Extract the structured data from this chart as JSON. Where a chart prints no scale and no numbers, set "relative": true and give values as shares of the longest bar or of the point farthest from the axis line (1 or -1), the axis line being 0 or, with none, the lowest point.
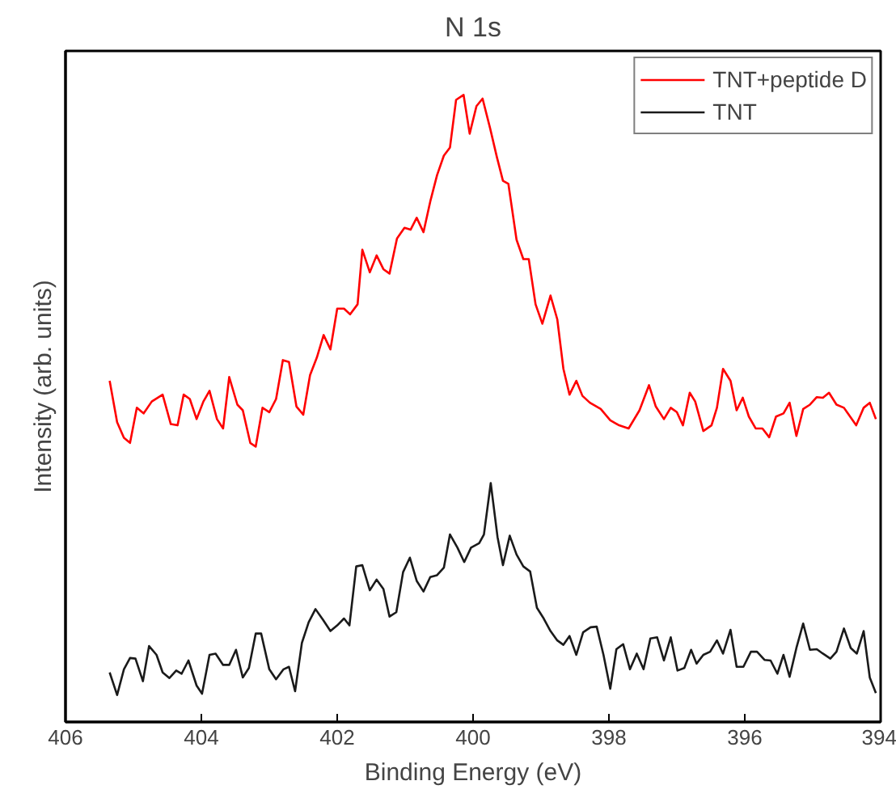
{
  "chart_data": {
    "type": "line",
    "title": "N 1s",
    "xlabel": "Binding Energy (eV)",
    "ylabel": "Intensity (arb. units)",
    "relative": true,
    "xlim": [
      406,
      394
    ],
    "xticks": [
      406,
      404,
      402,
      400,
      398,
      396,
      394
    ],
    "legend": "top right",
    "grid": false,
    "line_style": "solid",
    "series": [
      {
        "name": "TNT+peptide D",
        "color": "#ff0000",
        "x": [
          405.35,
          405.24,
          405.14,
          405.05,
          404.95,
          404.85,
          404.73,
          404.57,
          404.45,
          404.35,
          404.26,
          404.17,
          404.07,
          403.97,
          403.88,
          403.77,
          403.68,
          403.59,
          403.47,
          403.39,
          403.28,
          403.2,
          403.1,
          403.0,
          402.9,
          402.8,
          402.71,
          402.6,
          402.5,
          402.4,
          402.3,
          402.2,
          402.1,
          402.0,
          401.9,
          401.81,
          401.7,
          401.63,
          401.52,
          401.42,
          401.32,
          401.23,
          401.12,
          401.01,
          400.92,
          400.83,
          400.73,
          400.63,
          400.53,
          400.43,
          400.34,
          400.25,
          400.14,
          400.05,
          399.95,
          399.86,
          399.75,
          399.65,
          399.56,
          399.48,
          399.36,
          399.26,
          399.18,
          399.08,
          398.98,
          398.86,
          398.76,
          398.67,
          398.58,
          398.48,
          398.39,
          398.28,
          398.12,
          397.98,
          397.85,
          397.71,
          397.55,
          397.41,
          397.31,
          397.19,
          397.09,
          397.0,
          396.91,
          396.81,
          396.73,
          396.61,
          396.49,
          396.41,
          396.32,
          396.21,
          396.12,
          396.03,
          395.94,
          395.84,
          395.74,
          395.64,
          395.54,
          395.43,
          395.34,
          395.24,
          395.14,
          395.04,
          394.94,
          394.85,
          394.76,
          394.65,
          394.54,
          394.36,
          394.25,
          394.16,
          394.07
        ],
        "values": [
          0.544,
          0.478,
          0.453,
          0.445,
          0.501,
          0.492,
          0.511,
          0.522,
          0.475,
          0.473,
          0.522,
          0.515,
          0.483,
          0.511,
          0.528,
          0.483,
          0.468,
          0.55,
          0.506,
          0.497,
          0.445,
          0.439,
          0.501,
          0.494,
          0.515,
          0.577,
          0.574,
          0.503,
          0.49,
          0.553,
          0.581,
          0.617,
          0.594,
          0.659,
          0.659,
          0.65,
          0.666,
          0.753,
          0.717,
          0.744,
          0.722,
          0.715,
          0.771,
          0.788,
          0.785,
          0.804,
          0.781,
          0.83,
          0.872,
          0.903,
          0.916,
          0.992,
          1,
          0.938,
          0.982,
          0.994,
          0.947,
          0.901,
          0.863,
          0.858,
          0.769,
          0.738,
          0.738,
          0.666,
          0.635,
          0.68,
          0.642,
          0.563,
          0.522,
          0.544,
          0.52,
          0.509,
          0.499,
          0.481,
          0.473,
          0.468,
          0.497,
          0.537,
          0.503,
          0.483,
          0.501,
          0.494,
          0.473,
          0.525,
          0.511,
          0.464,
          0.473,
          0.501,
          0.563,
          0.544,
          0.497,
          0.517,
          0.487,
          0.468,
          0.468,
          0.454,
          0.487,
          0.492,
          0.509,
          0.456,
          0.499,
          0.506,
          0.518,
          0.517,
          0.525,
          0.506,
          0.501,
          0.473,
          0.501,
          0.509,
          0.483
        ]
      },
      {
        "name": "TNT",
        "color": "#1a1a1a",
        "x": [
          405.35,
          405.24,
          405.14,
          405.05,
          404.97,
          404.86,
          404.77,
          404.66,
          404.57,
          404.47,
          404.37,
          404.29,
          404.19,
          404.07,
          403.99,
          403.88,
          403.79,
          403.68,
          403.59,
          403.49,
          403.39,
          403.3,
          403.2,
          403.12,
          403.0,
          402.9,
          402.79,
          402.71,
          402.62,
          402.52,
          402.42,
          402.32,
          402.21,
          402.1,
          402.0,
          401.9,
          401.82,
          401.72,
          401.63,
          401.52,
          401.42,
          401.32,
          401.23,
          401.13,
          401.03,
          400.93,
          400.83,
          400.73,
          400.63,
          400.53,
          400.43,
          400.34,
          400.23,
          400.13,
          400.03,
          399.91,
          399.84,
          399.74,
          399.64,
          399.56,
          399.46,
          399.36,
          399.26,
          399.16,
          399.06,
          398.96,
          398.86,
          398.76,
          398.67,
          398.58,
          398.48,
          398.38,
          398.27,
          398.18,
          398.08,
          397.98,
          397.89,
          397.79,
          397.69,
          397.59,
          397.49,
          397.39,
          397.29,
          397.19,
          397.09,
          396.99,
          396.89,
          396.79,
          396.71,
          396.61,
          396.51,
          396.41,
          396.32,
          396.21,
          396.12,
          396.02,
          395.91,
          395.82,
          395.71,
          395.62,
          395.52,
          395.43,
          395.34,
          395.24,
          395.14,
          395.04,
          394.94,
          394.85,
          394.74,
          394.65,
          394.54,
          394.44,
          394.35,
          394.25,
          394.16,
          394.07
        ],
        "values": [
          0.079,
          0.043,
          0.084,
          0.102,
          0.101,
          0.065,
          0.121,
          0.107,
          0.079,
          0.07,
          0.082,
          0.077,
          0.098,
          0.058,
          0.045,
          0.107,
          0.109,
          0.091,
          0.091,
          0.115,
          0.071,
          0.086,
          0.141,
          0.141,
          0.084,
          0.068,
          0.084,
          0.088,
          0.049,
          0.126,
          0.159,
          0.18,
          0.163,
          0.145,
          0.154,
          0.165,
          0.154,
          0.248,
          0.25,
          0.21,
          0.227,
          0.212,
          0.168,
          0.175,
          0.239,
          0.262,
          0.225,
          0.208,
          0.231,
          0.234,
          0.246,
          0.299,
          0.278,
          0.255,
          0.278,
          0.285,
          0.299,
          0.381,
          0.295,
          0.25,
          0.297,
          0.267,
          0.248,
          0.24,
          0.182,
          0.165,
          0.145,
          0.13,
          0.123,
          0.137,
          0.107,
          0.143,
          0.151,
          0.152,
          0.107,
          0.053,
          0.116,
          0.124,
          0.084,
          0.109,
          0.084,
          0.133,
          0.135,
          0.098,
          0.135,
          0.082,
          0.086,
          0.115,
          0.093,
          0.107,
          0.112,
          0.13,
          0.109,
          0.147,
          0.088,
          0.088,
          0.112,
          0.112,
          0.099,
          0.098,
          0.077,
          0.107,
          0.072,
          0.118,
          0.157,
          0.115,
          0.116,
          0.109,
          0.101,
          0.112,
          0.149,
          0.118,
          0.109,
          0.145,
          0.071,
          0.046
        ]
      }
    ]
  }
}
